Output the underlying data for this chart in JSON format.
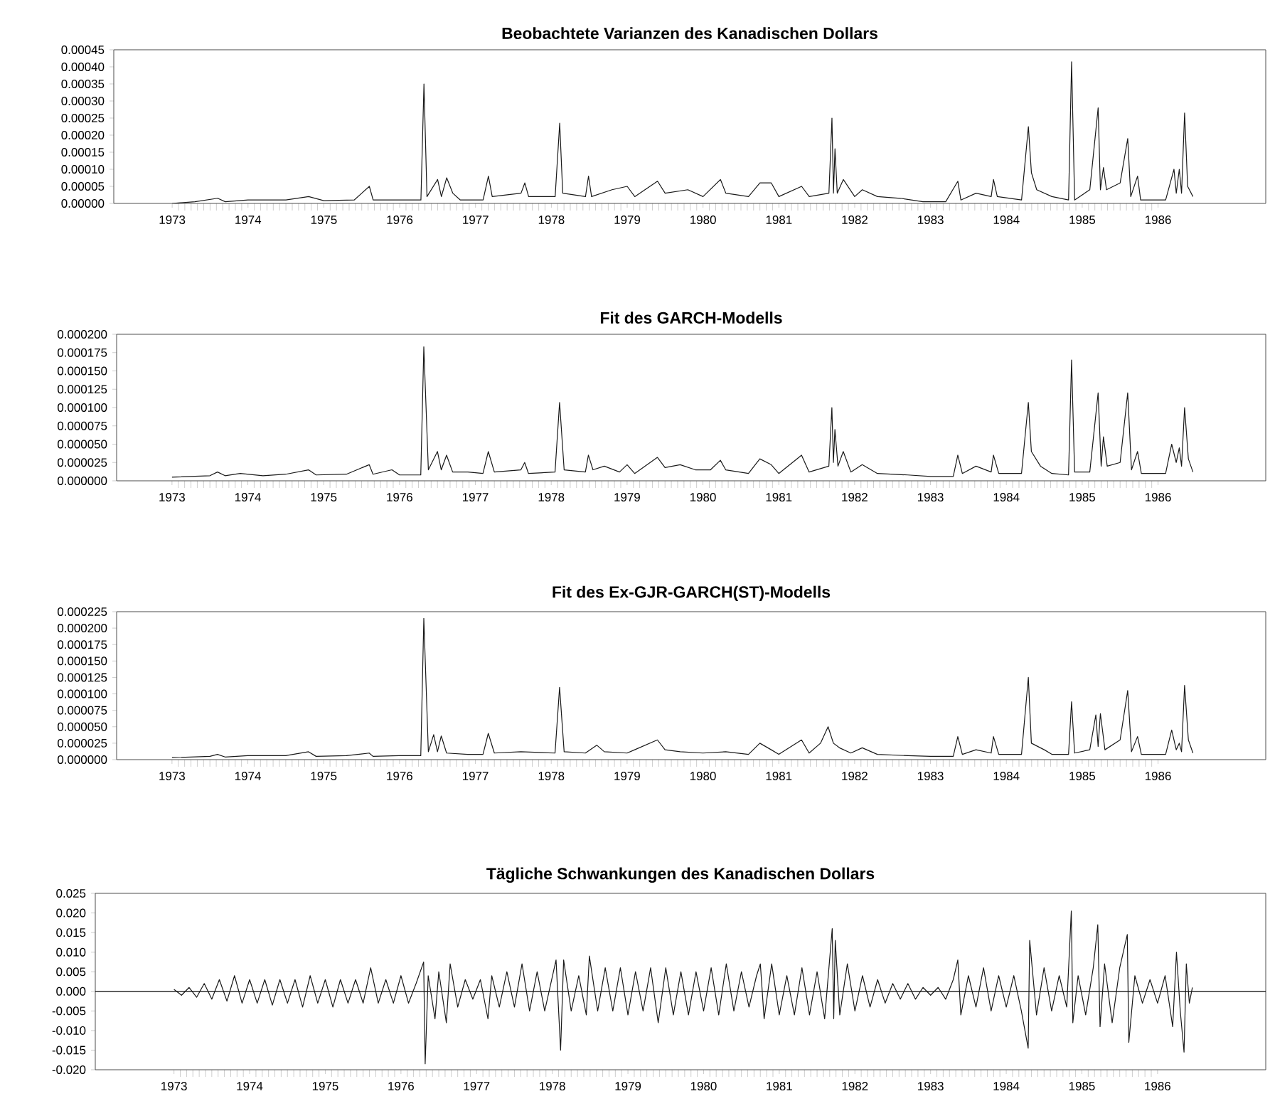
{
  "chart_data": [
    {
      "type": "line",
      "title": "Beobachtete Varianzen des Kanadischen Dollars",
      "color": "#1a1a1a",
      "x": [
        1973.0,
        1973.3,
        1973.6,
        1973.7,
        1974.0,
        1974.5,
        1974.8,
        1975.0,
        1975.4,
        1975.6,
        1975.65,
        1976.0,
        1976.28,
        1976.32,
        1976.36,
        1976.5,
        1976.55,
        1976.62,
        1976.7,
        1976.8,
        1977.1,
        1977.17,
        1977.22,
        1977.6,
        1977.65,
        1977.7,
        1978.05,
        1978.11,
        1978.15,
        1978.45,
        1978.49,
        1978.53,
        1978.8,
        1979.0,
        1979.1,
        1979.4,
        1979.5,
        1979.8,
        1980.0,
        1980.23,
        1980.3,
        1980.6,
        1980.75,
        1980.9,
        1981.0,
        1981.3,
        1981.4,
        1981.66,
        1981.7,
        1981.72,
        1981.74,
        1981.77,
        1981.85,
        1982.0,
        1982.1,
        1982.3,
        1982.6,
        1982.9,
        1983.2,
        1983.36,
        1983.4,
        1983.6,
        1983.8,
        1983.83,
        1983.88,
        1984.2,
        1984.29,
        1984.33,
        1984.4,
        1984.6,
        1984.82,
        1984.86,
        1984.9,
        1985.1,
        1985.21,
        1985.24,
        1985.28,
        1985.32,
        1985.5,
        1985.6,
        1985.64,
        1985.73,
        1985.77,
        1986.1,
        1986.21,
        1986.24,
        1986.28,
        1986.31,
        1986.35,
        1986.39,
        1986.46
      ],
      "values": [
        0,
        5e-06,
        1.5e-05,
        5e-06,
        1e-05,
        1e-05,
        2e-05,
        8e-06,
        1e-05,
        5e-05,
        1e-05,
        1e-05,
        1e-05,
        0.00035,
        2e-05,
        7e-05,
        2e-05,
        7.5e-05,
        3e-05,
        1e-05,
        1e-05,
        8e-05,
        2e-05,
        3e-05,
        6e-05,
        2e-05,
        2e-05,
        0.000235,
        3e-05,
        2e-05,
        8e-05,
        2e-05,
        4e-05,
        5e-05,
        2e-05,
        6.5e-05,
        3e-05,
        4e-05,
        2e-05,
        7e-05,
        3e-05,
        2e-05,
        6e-05,
        6e-05,
        2e-05,
        5e-05,
        2e-05,
        3e-05,
        0.00025,
        3e-05,
        0.00016,
        3e-05,
        7e-05,
        2e-05,
        4e-05,
        2e-05,
        1.5e-05,
        5e-06,
        5e-06,
        6.5e-05,
        1e-05,
        3e-05,
        2e-05,
        7e-05,
        2e-05,
        1e-05,
        0.000225,
        9e-05,
        4e-05,
        2e-05,
        1e-05,
        0.000415,
        1e-05,
        4e-05,
        0.00028,
        4e-05,
        0.000105,
        4e-05,
        6e-05,
        0.00019,
        2e-05,
        8e-05,
        1e-05,
        1e-05,
        0.0001,
        3e-05,
        0.0001,
        3e-05,
        0.000265,
        5e-05,
        2e-05
      ],
      "xlim": [
        1972.23,
        1987.42
      ],
      "xticks": [
        1973,
        1974,
        1975,
        1976,
        1977,
        1978,
        1979,
        1980,
        1981,
        1982,
        1983,
        1984,
        1985,
        1986
      ],
      "ylim": [
        0,
        0.00045
      ],
      "yticks": [
        {
          "value": 0,
          "label": "0.00000"
        },
        {
          "value": 5e-05,
          "label": "0.00005"
        },
        {
          "value": 0.0001,
          "label": "0.00010"
        },
        {
          "value": 0.00015,
          "label": "0.00015"
        },
        {
          "value": 0.0002,
          "label": "0.00020"
        },
        {
          "value": 0.00025,
          "label": "0.00025"
        },
        {
          "value": 0.0003,
          "label": "0.00030"
        },
        {
          "value": 0.00035,
          "label": "0.00035"
        },
        {
          "value": 0.0004,
          "label": "0.00040"
        },
        {
          "value": 0.00045,
          "label": "0.00045"
        }
      ]
    },
    {
      "type": "line",
      "title": "Fit des GARCH-Modells",
      "color": "#1a1a1a",
      "x": [
        1973.0,
        1973.5,
        1973.6,
        1973.7,
        1973.9,
        1974.2,
        1974.5,
        1974.8,
        1974.9,
        1975.3,
        1975.6,
        1975.65,
        1975.9,
        1976.0,
        1976.28,
        1976.32,
        1976.38,
        1976.5,
        1976.55,
        1976.62,
        1976.7,
        1976.9,
        1977.1,
        1977.17,
        1977.25,
        1977.6,
        1977.65,
        1977.7,
        1978.05,
        1978.11,
        1978.17,
        1978.45,
        1978.49,
        1978.55,
        1978.7,
        1978.9,
        1979.0,
        1979.1,
        1979.4,
        1979.5,
        1979.7,
        1979.9,
        1980.1,
        1980.23,
        1980.3,
        1980.6,
        1980.75,
        1980.9,
        1981.0,
        1981.3,
        1981.4,
        1981.66,
        1981.7,
        1981.72,
        1981.74,
        1981.78,
        1981.85,
        1981.95,
        1982.1,
        1982.3,
        1982.7,
        1983.0,
        1983.3,
        1983.36,
        1983.42,
        1983.6,
        1983.8,
        1983.83,
        1983.9,
        1984.2,
        1984.29,
        1984.33,
        1984.45,
        1984.6,
        1984.82,
        1984.86,
        1984.9,
        1985.1,
        1985.21,
        1985.25,
        1985.28,
        1985.33,
        1985.5,
        1985.6,
        1985.65,
        1985.73,
        1985.78,
        1986.1,
        1986.18,
        1986.24,
        1986.28,
        1986.31,
        1986.35,
        1986.4,
        1986.46
      ],
      "values": [
        5e-06,
        7e-06,
        1.2e-05,
        7e-06,
        1e-05,
        7e-06,
        9e-06,
        1.5e-05,
        8e-06,
        9e-06,
        2.2e-05,
        9e-06,
        1.5e-05,
        8e-06,
        8e-06,
        0.000183,
        1.5e-05,
        4e-05,
        1.5e-05,
        3.5e-05,
        1.2e-05,
        1.2e-05,
        1e-05,
        4e-05,
        1.2e-05,
        1.5e-05,
        2.5e-05,
        1e-05,
        1.2e-05,
        0.000107,
        1.5e-05,
        1.2e-05,
        3.5e-05,
        1.5e-05,
        2e-05,
        1.2e-05,
        2.2e-05,
        1e-05,
        3.2e-05,
        1.8e-05,
        2.2e-05,
        1.5e-05,
        1.5e-05,
        2.8e-05,
        1.5e-05,
        1e-05,
        3e-05,
        2.2e-05,
        1e-05,
        3.5e-05,
        1.2e-05,
        2e-05,
        0.0001,
        2.5e-05,
        7e-05,
        2e-05,
        4e-05,
        1.2e-05,
        2.2e-05,
        1e-05,
        8e-06,
        6e-06,
        6e-06,
        3.5e-05,
        1e-05,
        2e-05,
        1.2e-05,
        3.5e-05,
        1e-05,
        1e-05,
        0.000107,
        4e-05,
        2e-05,
        1e-05,
        8e-06,
        0.000165,
        1.2e-05,
        1.2e-05,
        0.00012,
        2e-05,
        6e-05,
        2e-05,
        2.5e-05,
        0.00012,
        1.5e-05,
        4e-05,
        1e-05,
        1e-05,
        5e-05,
        2.5e-05,
        4.5e-05,
        2e-05,
        0.0001,
        3e-05,
        1.2e-05
      ],
      "xlim": [
        1972.27,
        1987.42
      ],
      "xticks": [
        1973,
        1974,
        1975,
        1976,
        1977,
        1978,
        1979,
        1980,
        1981,
        1982,
        1983,
        1984,
        1985,
        1986
      ],
      "ylim": [
        0,
        0.0002
      ],
      "yticks": [
        {
          "value": 0,
          "label": "0.000000"
        },
        {
          "value": 2.5e-05,
          "label": "0.000025"
        },
        {
          "value": 5e-05,
          "label": "0.000050"
        },
        {
          "value": 7.5e-05,
          "label": "0.000075"
        },
        {
          "value": 0.0001,
          "label": "0.000100"
        },
        {
          "value": 0.000125,
          "label": "0.000125"
        },
        {
          "value": 0.00015,
          "label": "0.000150"
        },
        {
          "value": 0.000175,
          "label": "0.000175"
        },
        {
          "value": 0.0002,
          "label": "0.000200"
        }
      ]
    },
    {
      "type": "line",
      "title": "Fit des Ex-GJR-GARCH(ST)-Modells",
      "color": "#1a1a1a",
      "x": [
        1973.0,
        1973.5,
        1973.6,
        1973.7,
        1974.0,
        1974.5,
        1974.8,
        1974.9,
        1975.3,
        1975.6,
        1975.65,
        1976.0,
        1976.28,
        1976.32,
        1976.38,
        1976.45,
        1976.5,
        1976.55,
        1976.62,
        1976.9,
        1977.1,
        1977.17,
        1977.25,
        1977.6,
        1978.05,
        1978.11,
        1978.17,
        1978.45,
        1978.6,
        1978.7,
        1979.0,
        1979.1,
        1979.4,
        1979.5,
        1979.7,
        1980.0,
        1980.3,
        1980.6,
        1980.75,
        1980.9,
        1981.0,
        1981.3,
        1981.4,
        1981.55,
        1981.65,
        1981.72,
        1981.8,
        1981.95,
        1982.1,
        1982.3,
        1982.7,
        1983.0,
        1983.3,
        1983.36,
        1983.42,
        1983.6,
        1983.8,
        1983.83,
        1983.9,
        1984.2,
        1984.29,
        1984.33,
        1984.5,
        1984.6,
        1984.82,
        1984.86,
        1984.9,
        1985.1,
        1985.18,
        1985.21,
        1985.24,
        1985.3,
        1985.5,
        1985.6,
        1985.65,
        1985.73,
        1985.78,
        1986.1,
        1986.18,
        1986.24,
        1986.28,
        1986.31,
        1986.35,
        1986.4,
        1986.46
      ],
      "values": [
        3e-06,
        5e-06,
        8e-06,
        4e-06,
        6e-06,
        6e-06,
        1.2e-05,
        5e-06,
        6e-06,
        1e-05,
        5e-06,
        6e-06,
        6e-06,
        0.000215,
        1.2e-05,
        3.8e-05,
        1.2e-05,
        3.6e-05,
        1e-05,
        8e-06,
        8e-06,
        4e-05,
        1e-05,
        1.2e-05,
        1e-05,
        0.00011,
        1.2e-05,
        1e-05,
        2.2e-05,
        1.2e-05,
        1e-05,
        1.5e-05,
        3e-05,
        1.5e-05,
        1.2e-05,
        1e-05,
        1.2e-05,
        8e-06,
        2.5e-05,
        1.5e-05,
        8e-06,
        3e-05,
        1e-05,
        2.5e-05,
        5e-05,
        2.5e-05,
        1.8e-05,
        1e-05,
        1.8e-05,
        8e-06,
        6e-06,
        5e-06,
        5e-06,
        3.5e-05,
        8e-06,
        1.5e-05,
        1e-05,
        3.5e-05,
        8e-06,
        8e-06,
        0.000125,
        2.5e-05,
        1.5e-05,
        8e-06,
        8e-06,
        8.8e-05,
        1e-05,
        1.5e-05,
        6.8e-05,
        2e-05,
        7e-05,
        1.5e-05,
        3e-05,
        0.000105,
        1.2e-05,
        3.5e-05,
        8e-06,
        8e-06,
        4.5e-05,
        1.5e-05,
        2.5e-05,
        1.2e-05,
        0.000113,
        3e-05,
        1e-05
      ],
      "xlim": [
        1972.27,
        1987.42
      ],
      "xticks": [
        1973,
        1974,
        1975,
        1976,
        1977,
        1978,
        1979,
        1980,
        1981,
        1982,
        1983,
        1984,
        1985,
        1986
      ],
      "ylim": [
        0,
        0.000225
      ],
      "yticks": [
        {
          "value": 0,
          "label": "0.000000"
        },
        {
          "value": 2.5e-05,
          "label": "0.000025"
        },
        {
          "value": 5e-05,
          "label": "0.000050"
        },
        {
          "value": 7.5e-05,
          "label": "0.000075"
        },
        {
          "value": 0.0001,
          "label": "0.000100"
        },
        {
          "value": 0.000125,
          "label": "0.000125"
        },
        {
          "value": 0.00015,
          "label": "0.000150"
        },
        {
          "value": 0.000175,
          "label": "0.000175"
        },
        {
          "value": 0.0002,
          "label": "0.000200"
        },
        {
          "value": 0.000225,
          "label": "0.000225"
        }
      ]
    },
    {
      "type": "line",
      "title": "Tägliche Schwankungen des Kanadischen Dollars",
      "color": "#1a1a1a",
      "x": [
        1973.0,
        1973.1,
        1973.2,
        1973.3,
        1973.4,
        1973.5,
        1973.6,
        1973.7,
        1973.8,
        1973.9,
        1974.0,
        1974.1,
        1974.2,
        1974.3,
        1974.4,
        1974.5,
        1974.6,
        1974.7,
        1974.8,
        1974.9,
        1975.0,
        1975.1,
        1975.2,
        1975.3,
        1975.4,
        1975.5,
        1975.6,
        1975.7,
        1975.8,
        1975.9,
        1976.0,
        1976.1,
        1976.2,
        1976.3,
        1976.32,
        1976.36,
        1976.45,
        1976.5,
        1976.6,
        1976.65,
        1976.75,
        1976.85,
        1976.95,
        1977.05,
        1977.15,
        1977.2,
        1977.3,
        1977.4,
        1977.5,
        1977.6,
        1977.7,
        1977.8,
        1977.9,
        1978.05,
        1978.11,
        1978.15,
        1978.25,
        1978.35,
        1978.45,
        1978.49,
        1978.6,
        1978.7,
        1978.8,
        1978.9,
        1979.0,
        1979.1,
        1979.2,
        1979.3,
        1979.4,
        1979.5,
        1979.6,
        1979.7,
        1979.8,
        1979.9,
        1980.0,
        1980.1,
        1980.2,
        1980.3,
        1980.4,
        1980.5,
        1980.6,
        1980.7,
        1980.75,
        1980.8,
        1980.9,
        1981.0,
        1981.1,
        1981.2,
        1981.3,
        1981.4,
        1981.5,
        1981.6,
        1981.7,
        1981.72,
        1981.74,
        1981.8,
        1981.9,
        1982.0,
        1982.1,
        1982.2,
        1982.3,
        1982.4,
        1982.5,
        1982.6,
        1982.7,
        1982.8,
        1982.9,
        1983.0,
        1983.1,
        1983.2,
        1983.3,
        1983.36,
        1983.4,
        1983.5,
        1983.6,
        1983.7,
        1983.8,
        1983.9,
        1984.0,
        1984.1,
        1984.2,
        1984.29,
        1984.31,
        1984.4,
        1984.5,
        1984.6,
        1984.7,
        1984.8,
        1984.86,
        1984.88,
        1984.95,
        1985.05,
        1985.15,
        1985.21,
        1985.24,
        1985.3,
        1985.4,
        1985.5,
        1985.6,
        1985.62,
        1985.7,
        1985.8,
        1985.9,
        1986.0,
        1986.1,
        1986.2,
        1986.25,
        1986.3,
        1986.35,
        1986.38,
        1986.42,
        1986.46
      ],
      "values": [
        0.0005,
        -0.001,
        0.001,
        -0.0015,
        0.002,
        -0.002,
        0.003,
        -0.0025,
        0.004,
        -0.003,
        0.003,
        -0.003,
        0.003,
        -0.0035,
        0.003,
        -0.003,
        0.003,
        -0.004,
        0.004,
        -0.003,
        0.003,
        -0.004,
        0.003,
        -0.003,
        0.003,
        -0.003,
        0.006,
        -0.003,
        0.003,
        -0.003,
        0.004,
        -0.003,
        0.002,
        0.0075,
        -0.0185,
        0.004,
        -0.007,
        0.005,
        -0.008,
        0.007,
        -0.004,
        0.003,
        -0.002,
        0.003,
        -0.007,
        0.004,
        -0.004,
        0.005,
        -0.004,
        0.007,
        -0.005,
        0.005,
        -0.005,
        0.008,
        -0.015,
        0.008,
        -0.005,
        0.004,
        -0.006,
        0.009,
        -0.005,
        0.006,
        -0.005,
        0.006,
        -0.006,
        0.005,
        -0.005,
        0.006,
        -0.008,
        0.006,
        -0.006,
        0.005,
        -0.006,
        0.005,
        -0.005,
        0.006,
        -0.006,
        0.007,
        -0.005,
        0.005,
        -0.004,
        0.004,
        0.007,
        -0.007,
        0.007,
        -0.006,
        0.004,
        -0.006,
        0.006,
        -0.006,
        0.005,
        -0.007,
        0.016,
        -0.007,
        0.013,
        -0.006,
        0.007,
        -0.005,
        0.004,
        -0.004,
        0.003,
        -0.003,
        0.002,
        -0.002,
        0.002,
        -0.002,
        0.001,
        -0.001,
        0.001,
        -0.002,
        0.003,
        0.008,
        -0.006,
        0.004,
        -0.004,
        0.006,
        -0.005,
        0.004,
        -0.004,
        0.004,
        -0.005,
        -0.0145,
        0.013,
        -0.006,
        0.006,
        -0.005,
        0.004,
        -0.004,
        0.0205,
        -0.008,
        0.004,
        -0.006,
        0.006,
        0.017,
        -0.009,
        0.007,
        -0.008,
        0.006,
        0.0145,
        -0.013,
        0.004,
        -0.003,
        0.003,
        -0.003,
        0.004,
        -0.009,
        0.01,
        -0.005,
        -0.0155,
        0.007,
        -0.003,
        0.001
      ],
      "xlim": [
        1971.96,
        1987.43
      ],
      "xticks": [
        1973,
        1974,
        1975,
        1976,
        1977,
        1978,
        1979,
        1980,
        1981,
        1982,
        1983,
        1984,
        1985,
        1986
      ],
      "ylim": [
        -0.02,
        0.025
      ],
      "yticks": [
        {
          "value": -0.02,
          "label": "-0.020"
        },
        {
          "value": -0.015,
          "label": "-0.015"
        },
        {
          "value": -0.01,
          "label": "-0.010"
        },
        {
          "value": -0.005,
          "label": "-0.005"
        },
        {
          "value": 0,
          "label": "0.000"
        },
        {
          "value": 0.005,
          "label": "0.005"
        },
        {
          "value": 0.01,
          "label": "0.010"
        },
        {
          "value": 0.015,
          "label": "0.015"
        },
        {
          "value": 0.02,
          "label": "0.020"
        },
        {
          "value": 0.025,
          "label": "0.025"
        }
      ],
      "ref_lines": [
        {
          "axis": "y",
          "value": 0
        }
      ]
    }
  ]
}
